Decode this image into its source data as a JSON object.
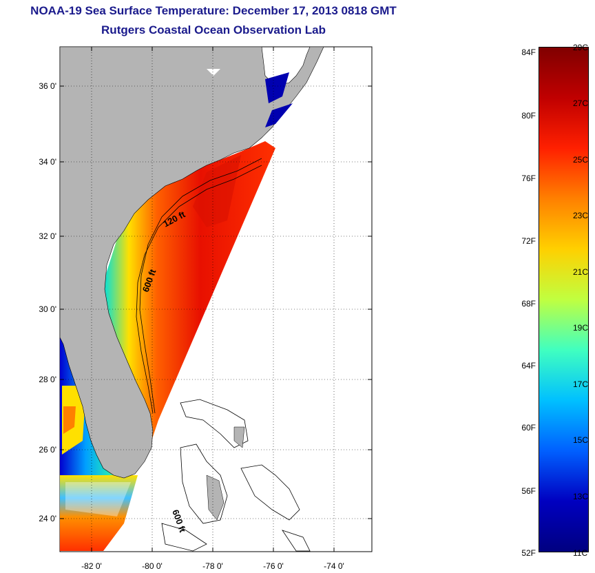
{
  "title": {
    "line1": "NOAA-19 Sea Surface Temperature:  December 17, 2013 0818 GMT",
    "line2": "Rutgers Coastal Ocean Observation Lab"
  },
  "axes": {
    "lat_labels": [
      "36 0'",
      "34 0'",
      "32 0'",
      "30 0'",
      "28 0'",
      "26 0'",
      "24 0'"
    ],
    "lon_labels": [
      "-82 0'",
      "-80 0'",
      "-78 0'",
      "-76 0'",
      "-74 0'"
    ]
  },
  "contours": {
    "label_120": "120 ft",
    "label_600a": "600 ft",
    "label_600b": "600 ft"
  },
  "colorbar": {
    "fahrenheit": [
      "84F",
      "80F",
      "76F",
      "72F",
      "68F",
      "64F",
      "60F",
      "56F",
      "52F"
    ],
    "celsius": [
      "29C",
      "27C",
      "25C",
      "23C",
      "21C",
      "19C",
      "17C",
      "15C",
      "13C",
      "11C"
    ],
    "colors": [
      "#800000",
      "#c00000",
      "#ff2000",
      "#ff8000",
      "#ffd000",
      "#c0ff40",
      "#40ffc0",
      "#00c0ff",
      "#0060ff",
      "#0000c0",
      "#000080"
    ]
  },
  "colors": {
    "land": "#b4b4b4",
    "title": "#1a1a8c"
  }
}
